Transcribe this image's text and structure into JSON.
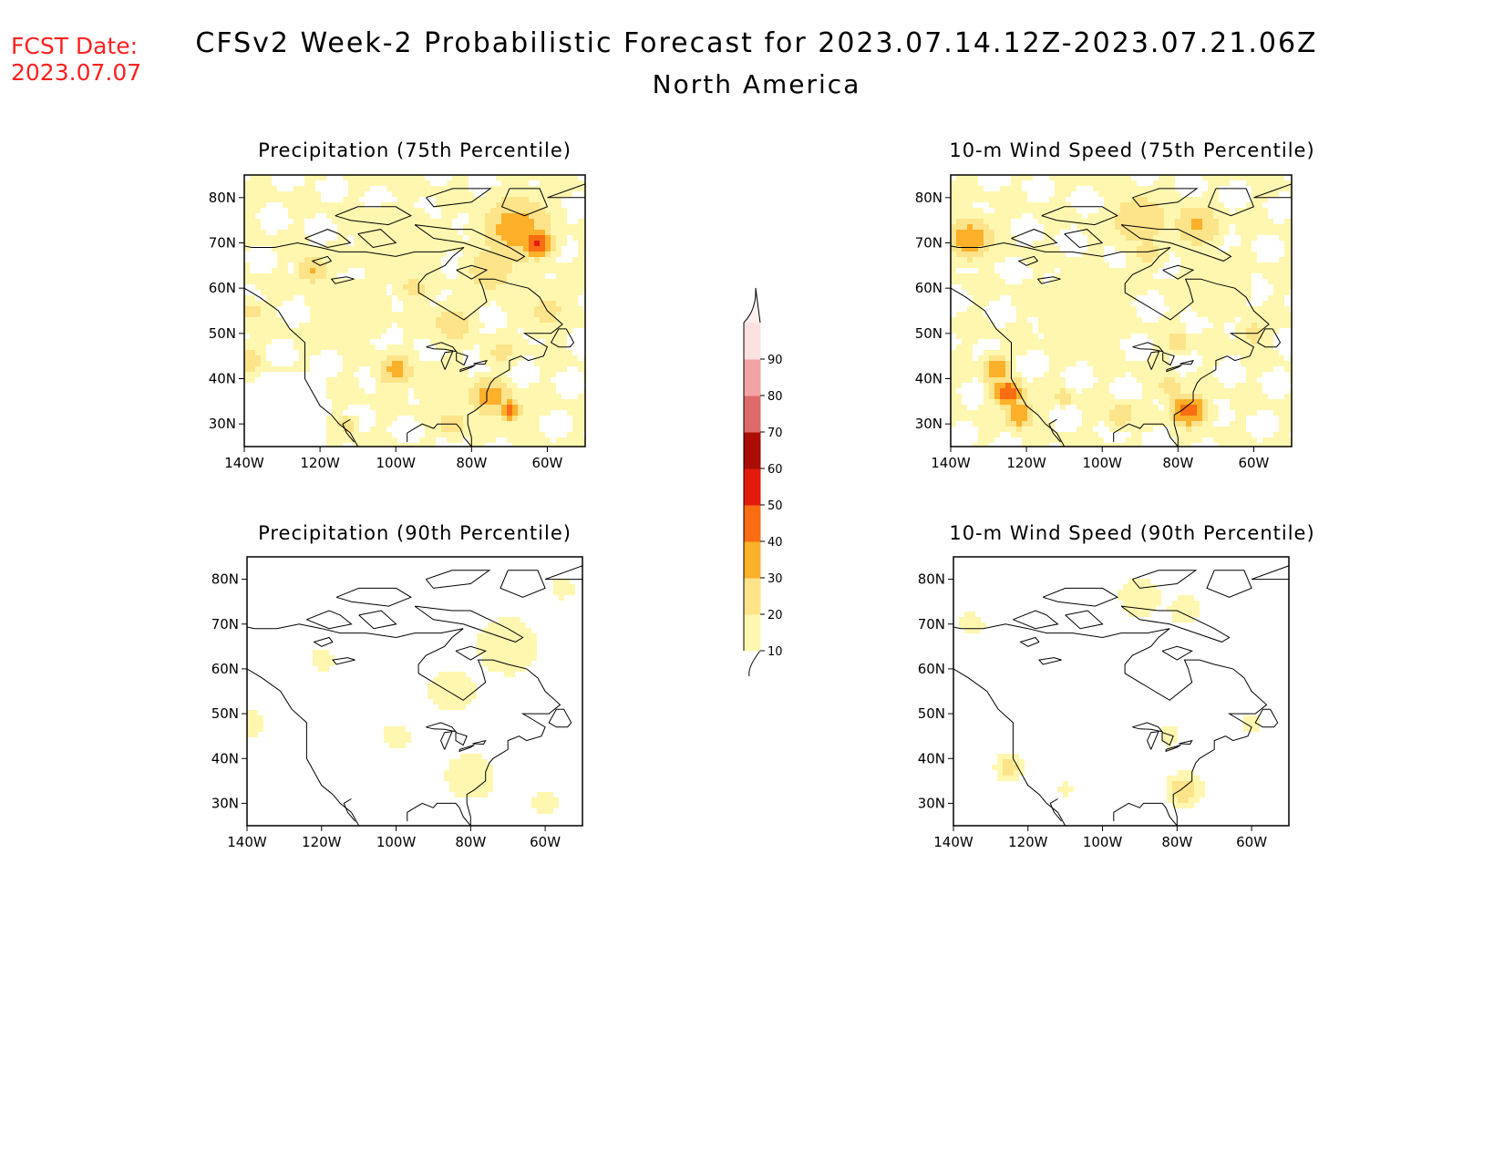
{
  "header": {
    "fcst_label": "FCST Date:",
    "fcst_date": "2023.07.07",
    "title": "CFSv2 Week-2 Probabilistic Forecast for 2023.07.14.12Z-2023.07.21.06Z",
    "subtitle": "North America"
  },
  "panels": [
    {
      "title": "Precipitation (75th Percentile)",
      "field": "precip",
      "percentile": 75
    },
    {
      "title": "10-m Wind Speed (75th Percentile)",
      "field": "wind",
      "percentile": 75
    },
    {
      "title": "Precipitation (90th Percentile)",
      "field": "precip",
      "percentile": 90
    },
    {
      "title": "10-m Wind Speed (90th Percentile)",
      "field": "wind",
      "percentile": 90
    }
  ],
  "axes": {
    "lon_labels": [
      "140W",
      "120W",
      "100W",
      "80W",
      "60W"
    ],
    "lon_values": [
      -140,
      -120,
      -100,
      -80,
      -60
    ],
    "lat_labels": [
      "80N",
      "70N",
      "60N",
      "50N",
      "40N",
      "30N"
    ],
    "lat_values": [
      80,
      70,
      60,
      50,
      40,
      30
    ],
    "lon_range": [
      -140,
      -50
    ],
    "lat_range": [
      25,
      85
    ]
  },
  "colorbar": {
    "levels": [
      10,
      20,
      30,
      40,
      50,
      60,
      70,
      80,
      90
    ],
    "labels": [
      "10",
      "20",
      "30",
      "40",
      "50",
      "60",
      "70",
      "80",
      "90"
    ],
    "colors": [
      "#fff7b0",
      "#fde48a",
      "#fdb02a",
      "#fb6d12",
      "#e21b0c",
      "#a90d04",
      "#de6a6a",
      "#f2a3a3",
      "#fde0e0"
    ]
  }
}
